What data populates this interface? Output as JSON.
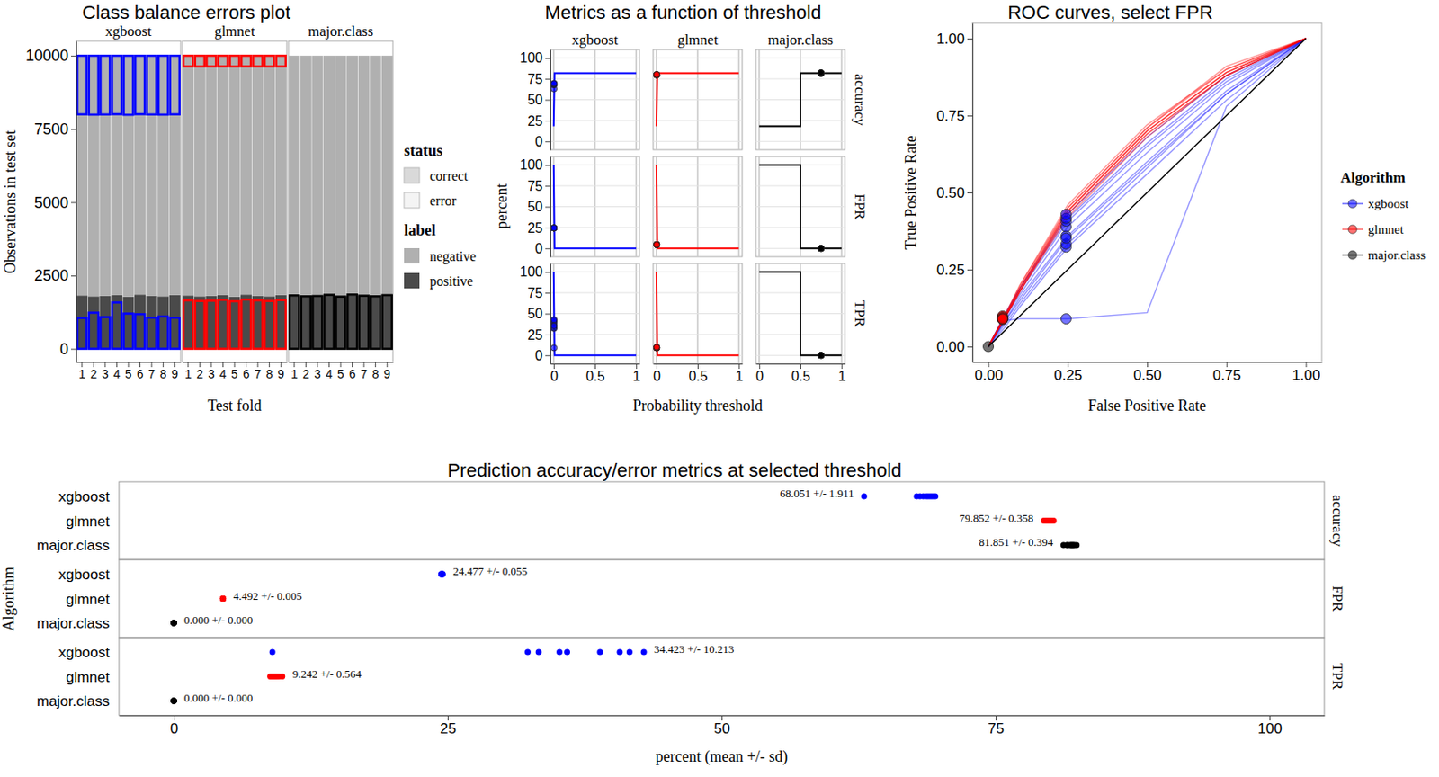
{
  "chart_data": [
    {
      "type": "bar",
      "stacked": true,
      "title": "Class balance errors plot",
      "x_label": "Test fold",
      "y_label": "Observations in test set",
      "facets": [
        "xgboost",
        "glmnet",
        "major.class"
      ],
      "categories": [
        "1",
        "2",
        "3",
        "4",
        "5",
        "6",
        "7",
        "8",
        "9"
      ],
      "ylim": [
        -450,
        10500
      ],
      "yticks": [
        0,
        2500,
        5000,
        7500,
        10000
      ],
      "legend": "right",
      "legend_titles": [
        "status",
        "label"
      ],
      "status_entries": [
        "correct",
        "error"
      ],
      "series": [
        {
          "name": "negative",
          "color": "#b0b0b0",
          "values": [
            8180,
            8210,
            8200,
            8160,
            8220,
            8150,
            8190,
            8210,
            8170
          ]
        },
        {
          "name": "positive",
          "color": "#4a4a4a",
          "values": [
            1820,
            1790,
            1800,
            1840,
            1780,
            1850,
            1810,
            1790,
            1830
          ]
        }
      ],
      "errors": [
        {
          "color": "#0000ff",
          "false_negative": [
            1050,
            1230,
            1080,
            1580,
            1200,
            1180,
            1060,
            1100,
            1060
          ],
          "false_positive": [
            2000,
            2010,
            2005,
            1995,
            2015,
            1995,
            2005,
            2010,
            2000
          ]
        },
        {
          "color": "#ff0000",
          "false_negative": [
            1650,
            1630,
            1640,
            1670,
            1620,
            1680,
            1650,
            1630,
            1660
          ],
          "false_positive": [
            367,
            369,
            368,
            366,
            369,
            366,
            368,
            369,
            367
          ]
        },
        {
          "color": "#000000",
          "false_negative": [
            1820,
            1790,
            1800,
            1840,
            1780,
            1850,
            1810,
            1790,
            1830
          ],
          "false_positive": [
            0,
            0,
            0,
            0,
            0,
            0,
            0,
            0,
            0
          ]
        }
      ]
    },
    {
      "type": "line",
      "title": "Metrics as a function of threshold",
      "x_label": "Probability threshold",
      "y_label": "percent",
      "facets": [
        "xgboost",
        "glmnet",
        "major.class"
      ],
      "metrics": [
        "accuracy",
        "FPR",
        "TPR"
      ],
      "xlim": [
        -0.04,
        1.04
      ],
      "xticks": [
        0,
        0.5,
        1
      ],
      "ylim": [
        -10,
        110
      ],
      "yticks": [
        0,
        25,
        50,
        75,
        100
      ],
      "grid": true,
      "series": [
        {
          "color": "#0000ff",
          "x": [
            0,
            0.01,
            0.5,
            1
          ],
          "values": [
            [
              18.1,
              81.9,
              81.9,
              81.9
            ],
            [
              100,
              0,
              0,
              0
            ],
            [
              100,
              0,
              0,
              0
            ]
          ],
          "selected_threshold": 0.003
        },
        {
          "color": "#ff0000",
          "x": [
            0,
            0.01,
            0.5,
            1
          ],
          "values": [
            [
              18.1,
              81.9,
              81.9,
              81.9
            ],
            [
              100,
              0,
              0,
              0
            ],
            [
              100,
              0,
              0,
              0
            ]
          ],
          "selected_threshold": 0.003
        },
        {
          "color": "#000000",
          "x": [
            0,
            0.5,
            0.5,
            1
          ],
          "values": [
            [
              18.1,
              18.1,
              81.9,
              81.9
            ],
            [
              100,
              100,
              0,
              0
            ],
            [
              100,
              100,
              0,
              0
            ]
          ],
          "selected_threshold": 0.75
        }
      ]
    },
    {
      "type": "line",
      "title": "ROC curves, select FPR",
      "x_label": "False Positive Rate",
      "y_label": "True Positive Rate",
      "xlim": [
        -0.05,
        1.05
      ],
      "ylim": [
        -0.05,
        1.05
      ],
      "xticks": [
        {
          "value": 0,
          "label": "0.00"
        },
        {
          "value": 0.25,
          "label": "0.25"
        },
        {
          "value": 0.5,
          "label": "0.50"
        },
        {
          "value": 0.75,
          "label": "0.75"
        },
        {
          "value": 1,
          "label": "1.00"
        }
      ],
      "yticks": [
        {
          "value": 0,
          "label": "0.00"
        },
        {
          "value": 0.25,
          "label": "0.25"
        },
        {
          "value": 0.5,
          "label": "0.50"
        },
        {
          "value": 0.75,
          "label": "0.75"
        },
        {
          "value": 1,
          "label": "1.00"
        }
      ],
      "legend": "right",
      "legend_title": "Algorithm",
      "x": [
        0,
        0.05,
        0.1,
        0.25,
        0.5,
        0.75,
        1
      ],
      "series": [
        {
          "name": "xgboost",
          "color": "#0000ff",
          "curves": [
            [
              0,
              0.085,
              0.09,
              0.09,
              0.11,
              0.78,
              1
            ],
            [
              0,
              0.06,
              0.13,
              0.323,
              0.56,
              0.8,
              1
            ],
            [
              0,
              0.07,
              0.14,
              0.333,
              0.58,
              0.82,
              1
            ],
            [
              0,
              0.08,
              0.16,
              0.359,
              0.6,
              0.83,
              1
            ],
            [
              0,
              0.09,
              0.17,
              0.389,
              0.63,
              0.85,
              1
            ],
            [
              0,
              0.09,
              0.18,
              0.407,
              0.65,
              0.86,
              1
            ],
            [
              0,
              0.1,
              0.19,
              0.416,
              0.66,
              0.87,
              1
            ],
            [
              0,
              0.1,
              0.19,
              0.429,
              0.68,
              0.88,
              1
            ],
            [
              0,
              0.08,
              0.15,
              0.352,
              0.59,
              0.82,
              1
            ]
          ],
          "points_x": [
            0.245,
            0.245,
            0.245,
            0.245,
            0.245,
            0.245,
            0.245,
            0.245,
            0.245
          ],
          "points_y": [
            0.09,
            0.323,
            0.333,
            0.359,
            0.389,
            0.407,
            0.416,
            0.429,
            0.352
          ]
        },
        {
          "name": "glmnet",
          "color": "#ff0000",
          "curves": [
            [
              0,
              0.088,
              0.18,
              0.44,
              0.7,
              0.89,
              1
            ],
            [
              0,
              0.09,
              0.19,
              0.45,
              0.71,
              0.9,
              1
            ],
            [
              0,
              0.092,
              0.18,
              0.43,
              0.69,
              0.88,
              1
            ],
            [
              0,
              0.094,
              0.2,
              0.46,
              0.72,
              0.9,
              1
            ],
            [
              0,
              0.096,
              0.19,
              0.44,
              0.7,
              0.89,
              1
            ],
            [
              0,
              0.099,
              0.2,
              0.45,
              0.71,
              0.91,
              1
            ],
            [
              0,
              0.091,
              0.18,
              0.42,
              0.68,
              0.88,
              1
            ],
            [
              0,
              0.093,
              0.19,
              0.44,
              0.7,
              0.89,
              1
            ],
            [
              0,
              0.089,
              0.18,
              0.43,
              0.69,
              0.88,
              1
            ]
          ],
          "points_x": [
            0.045,
            0.045,
            0.045,
            0.045,
            0.045,
            0.045,
            0.045,
            0.045,
            0.045
          ],
          "points_y": [
            0.088,
            0.09,
            0.092,
            0.094,
            0.096,
            0.099,
            0.091,
            0.093,
            0.089
          ]
        },
        {
          "name": "major.class",
          "color": "#000000",
          "curves": [
            [
              0,
              0.05,
              0.1,
              0.25,
              0.5,
              0.75,
              1
            ]
          ],
          "points_x": [
            0
          ],
          "points_y": [
            0
          ]
        }
      ]
    },
    {
      "type": "scatter",
      "title": "Prediction accuracy/error metrics at selected threshold",
      "x_label": "percent (mean +/- sd)",
      "y_label": "Algorithm",
      "categories": [
        "xgboost",
        "glmnet",
        "major.class"
      ],
      "metrics": [
        "accuracy",
        "FPR",
        "TPR"
      ],
      "xlim": [
        -5,
        105
      ],
      "xticks": [
        0,
        25,
        50,
        75,
        100
      ],
      "series": [
        {
          "color": "#0000ff",
          "values": [
            [
              63.0,
              67.8,
              68.1,
              68.4,
              68.7,
              68.9,
              69.1,
              69.3,
              69.5
            ],
            [
              24.45,
              24.5,
              24.4,
              24.48,
              24.52,
              24.47,
              24.43,
              24.5,
              24.55
            ],
            [
              9.0,
              32.3,
              33.3,
              35.9,
              38.9,
              40.7,
              41.6,
              42.9,
              35.2
            ]
          ],
          "summary_labels": [
            "68.051 +/- 1.911",
            "24.477 +/- 0.055",
            "34.423 +/- 10.213"
          ]
        },
        {
          "color": "#ff0000",
          "values": [
            [
              79.4,
              79.6,
              79.7,
              79.8,
              79.9,
              79.9,
              80.0,
              80.1,
              80.3
            ],
            [
              4.48,
              4.49,
              4.5,
              4.49,
              4.49,
              4.5,
              4.48,
              4.49,
              4.5
            ],
            [
              8.8,
              8.9,
              9.0,
              9.1,
              9.2,
              9.3,
              9.4,
              9.6,
              9.9
            ]
          ],
          "summary_labels": [
            "79.852 +/- 0.358",
            "4.492 +/- 0.005",
            "9.242 +/- 0.564"
          ]
        },
        {
          "color": "#000000",
          "values": [
            [
              81.2,
              81.5,
              81.6,
              81.8,
              81.9,
              82.0,
              82.1,
              82.2,
              82.4
            ],
            [
              0,
              0,
              0,
              0,
              0,
              0,
              0,
              0,
              0
            ],
            [
              0,
              0,
              0,
              0,
              0,
              0,
              0,
              0,
              0
            ]
          ],
          "summary_labels": [
            "81.851 +/- 0.394",
            "0.000 +/- 0.000",
            "0.000 +/- 0.000"
          ]
        }
      ]
    }
  ]
}
